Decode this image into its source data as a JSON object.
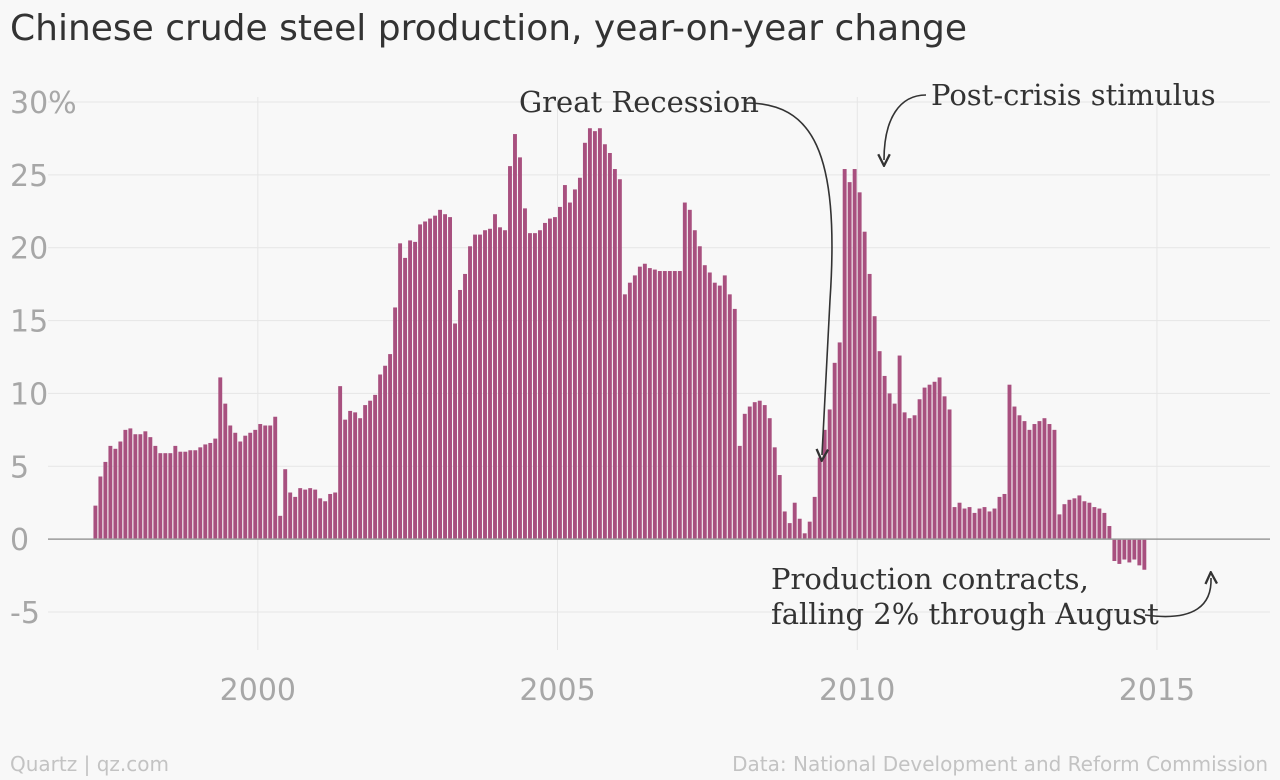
{
  "chart_data": {
    "type": "bar",
    "title": "Chinese crude steel production, year-on-year change",
    "ylim": [
      -5,
      30
    ],
    "y_ticks": [
      {
        "value": 30,
        "label": "30%"
      },
      {
        "value": 25,
        "label": "25"
      },
      {
        "value": 20,
        "label": "20"
      },
      {
        "value": 15,
        "label": "15"
      },
      {
        "value": 10,
        "label": "10"
      },
      {
        "value": 5,
        "label": "5"
      },
      {
        "value": 0,
        "label": "0"
      },
      {
        "value": -5,
        "label": "-5"
      }
    ],
    "x_ticks": [
      "2000",
      "2005",
      "2010",
      "2015"
    ],
    "grid": true,
    "bar_color": "#a8507f",
    "start": "1997-04",
    "frequency": "monthly",
    "values": [
      2.3,
      4.3,
      5.3,
      6.4,
      6.2,
      6.7,
      7.5,
      7.6,
      7.2,
      7.2,
      7.4,
      7.0,
      6.4,
      5.9,
      5.9,
      5.9,
      6.4,
      6.0,
      6.0,
      6.1,
      6.1,
      6.3,
      6.5,
      6.6,
      6.9,
      11.1,
      9.3,
      7.8,
      7.3,
      6.7,
      7.1,
      7.3,
      7.5,
      7.9,
      7.8,
      7.8,
      8.4,
      1.6,
      4.8,
      3.2,
      2.9,
      3.5,
      3.4,
      3.5,
      3.4,
      2.8,
      2.6,
      3.1,
      3.2,
      10.5,
      8.2,
      8.8,
      8.7,
      8.3,
      9.2,
      9.5,
      9.9,
      11.3,
      11.9,
      12.7,
      15.9,
      20.3,
      19.3,
      20.5,
      20.4,
      21.6,
      21.8,
      22.0,
      22.2,
      22.6,
      22.3,
      22.1,
      14.8,
      17.1,
      18.2,
      20.1,
      20.9,
      20.9,
      21.2,
      21.3,
      22.3,
      21.4,
      21.2,
      25.6,
      27.8,
      26.2,
      22.7,
      21.0,
      21.0,
      21.2,
      21.7,
      22.0,
      22.1,
      22.8,
      24.3,
      23.1,
      24.0,
      24.8,
      27.2,
      28.2,
      28.0,
      28.2,
      27.1,
      26.5,
      25.4,
      24.7,
      16.8,
      17.6,
      18.1,
      18.7,
      18.9,
      18.6,
      18.5,
      18.4,
      18.4,
      18.4,
      18.4,
      18.4,
      23.1,
      22.6,
      21.2,
      20.1,
      18.8,
      18.3,
      17.6,
      17.4,
      18.1,
      16.8,
      15.8,
      6.4,
      8.6,
      9.1,
      9.4,
      9.5,
      9.2,
      8.3,
      6.3,
      4.4,
      1.9,
      1.1,
      2.5,
      1.4,
      0.4,
      1.2,
      2.9,
      5.6,
      7.5,
      8.9,
      12.1,
      13.5,
      25.4,
      24.5,
      25.4,
      23.8,
      21.1,
      18.2,
      15.3,
      12.9,
      11.2,
      10.0,
      9.3,
      12.6,
      8.7,
      8.3,
      8.5,
      9.6,
      10.4,
      10.6,
      10.8,
      11.1,
      9.8,
      8.9,
      2.2,
      2.5,
      2.1,
      2.2,
      1.8,
      2.1,
      2.2,
      1.9,
      2.1,
      2.9,
      3.1,
      10.6,
      9.1,
      8.5,
      8.1,
      7.5,
      7.9,
      8.1,
      8.3,
      7.9,
      7.5,
      1.7,
      2.4,
      2.7,
      2.8,
      3.0,
      2.6,
      2.5,
      2.2,
      2.1,
      1.8,
      0.9,
      -1.5,
      -1.7,
      -1.4,
      -1.6,
      -1.4,
      -1.8,
      -2.1
    ]
  },
  "annotations": {
    "great_recession": "Great Recession",
    "stimulus": "Post-crisis stimulus",
    "contract_line1": "Production contracts,",
    "contract_line2": "falling 2% through August"
  },
  "footer": {
    "credit": "Quartz | qz.com",
    "source": "Data: National Development and Reform Commission"
  }
}
